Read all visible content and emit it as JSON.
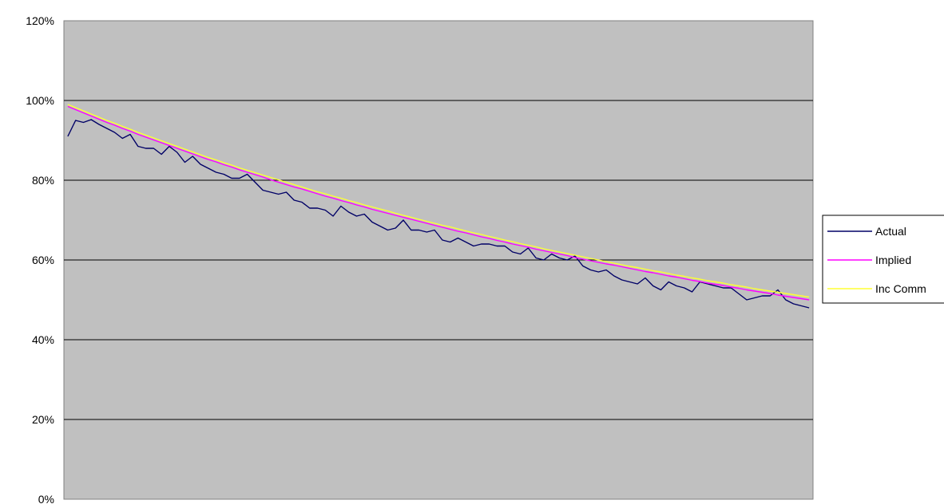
{
  "chart_data": {
    "type": "line",
    "title": "",
    "xlabel": "",
    "ylabel": "",
    "ylim": [
      0,
      120
    ],
    "y_ticks": [
      "0%",
      "20%",
      "40%",
      "60%",
      "80%",
      "100%",
      "120%"
    ],
    "y_tick_values": [
      0,
      20,
      40,
      60,
      80,
      100,
      120
    ],
    "grid": true,
    "legend_position": "right",
    "plot_background": "#c0c0c0",
    "series": [
      {
        "name": "Actual",
        "color": "#000066",
        "values": [
          91.0,
          95.0,
          94.5,
          95.2,
          94.0,
          93.0,
          92.0,
          90.5,
          91.5,
          88.5,
          88.0,
          88.0,
          86.5,
          88.5,
          87.0,
          84.5,
          86.0,
          84.0,
          83.0,
          82.0,
          81.5,
          80.5,
          80.5,
          81.5,
          79.5,
          77.5,
          77.0,
          76.5,
          77.0,
          75.0,
          74.5,
          73.0,
          73.0,
          72.5,
          71.0,
          73.5,
          72.0,
          71.0,
          71.5,
          69.5,
          68.5,
          67.5,
          68.0,
          70.0,
          67.5,
          67.5,
          67.0,
          67.5,
          65.0,
          64.5,
          65.5,
          64.5,
          63.5,
          64.0,
          64.0,
          63.5,
          63.5,
          62.0,
          61.5,
          63.0,
          60.5,
          60.0,
          61.5,
          60.5,
          60.0,
          61.0,
          58.5,
          57.5,
          57.0,
          57.5,
          56.0,
          55.0,
          54.5,
          54.0,
          55.5,
          53.5,
          52.5,
          54.5,
          53.5,
          53.0,
          52.0,
          54.5,
          54.0,
          53.5,
          53.0,
          53.0,
          51.5,
          50.0,
          50.5,
          51.0,
          51.0,
          52.5,
          50.0,
          49.0,
          48.5,
          48.0
        ]
      },
      {
        "name": "Implied",
        "color": "#ff00ff",
        "values": [
          98.5,
          97.7,
          96.9,
          96.1,
          95.3,
          94.5,
          93.8,
          93.0,
          92.3,
          91.5,
          90.8,
          90.1,
          89.4,
          88.7,
          88.0,
          87.3,
          86.6,
          85.9,
          85.2,
          84.6,
          83.9,
          83.3,
          82.6,
          82.0,
          81.4,
          80.8,
          80.1,
          79.5,
          78.9,
          78.3,
          77.8,
          77.2,
          76.6,
          76.0,
          75.5,
          74.9,
          74.4,
          73.8,
          73.3,
          72.7,
          72.2,
          71.7,
          71.2,
          70.7,
          70.2,
          69.7,
          69.2,
          68.7,
          68.2,
          67.7,
          67.2,
          66.8,
          66.3,
          65.8,
          65.4,
          64.9,
          64.5,
          64.0,
          63.6,
          63.2,
          62.7,
          62.3,
          61.9,
          61.5,
          61.1,
          60.6,
          60.2,
          59.8,
          59.4,
          59.0,
          58.7,
          58.3,
          57.9,
          57.5,
          57.1,
          56.8,
          56.4,
          56.0,
          55.7,
          55.3,
          54.9,
          54.6,
          54.2,
          53.9,
          53.6,
          53.2,
          52.9,
          52.5,
          52.2,
          51.9,
          51.6,
          51.2,
          50.9,
          50.6,
          50.3,
          50.0
        ]
      },
      {
        "name": "Inc Comm",
        "color": "#ffff33",
        "values": [
          99.0,
          98.2,
          97.4,
          96.6,
          95.8,
          95.0,
          94.3,
          93.5,
          92.8,
          92.0,
          91.3,
          90.6,
          89.9,
          89.2,
          88.5,
          87.8,
          87.1,
          86.4,
          85.7,
          85.1,
          84.4,
          83.8,
          83.1,
          82.5,
          81.9,
          81.3,
          80.7,
          80.1,
          79.5,
          78.9,
          78.3,
          77.7,
          77.1,
          76.6,
          76.0,
          75.5,
          74.9,
          74.4,
          73.8,
          73.3,
          72.8,
          72.3,
          71.7,
          71.2,
          70.7,
          70.2,
          69.7,
          69.2,
          68.7,
          68.3,
          67.8,
          67.3,
          66.8,
          66.4,
          65.9,
          65.5,
          65.0,
          64.6,
          64.1,
          63.7,
          63.3,
          62.8,
          62.4,
          62.0,
          61.6,
          61.2,
          60.8,
          60.4,
          60.0,
          59.6,
          59.2,
          58.8,
          58.4,
          58.1,
          57.7,
          57.3,
          57.0,
          56.6,
          56.2,
          55.9,
          55.5,
          55.2,
          54.8,
          54.5,
          54.2,
          53.8,
          53.5,
          53.2,
          52.8,
          52.5,
          52.2,
          51.9,
          51.6,
          51.3,
          51.0,
          50.7
        ]
      }
    ]
  }
}
